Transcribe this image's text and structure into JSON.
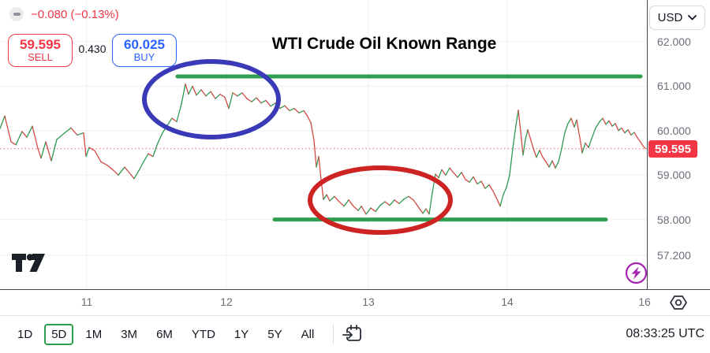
{
  "header": {
    "change_text": "−0.080 (−0.13%)",
    "sell": {
      "price": "59.595",
      "label": "SELL"
    },
    "spread": "0.430",
    "buy": {
      "price": "60.025",
      "label": "BUY"
    },
    "currency": "USD",
    "title": "WTI Crude Oil Known Range"
  },
  "price_axis": {
    "ticks": [
      {
        "label": "62.000",
        "price": 62.0
      },
      {
        "label": "61.000",
        "price": 61.0
      },
      {
        "label": "60.000",
        "price": 60.0
      },
      {
        "label": "59.000",
        "price": 59.0
      },
      {
        "label": "58.000",
        "price": 58.0
      },
      {
        "label": "57.200",
        "price": 57.2
      }
    ],
    "last_price_badge": {
      "label": "59.595",
      "price": 59.595,
      "color": "#f23645"
    }
  },
  "time_axis": {
    "ticks": [
      {
        "label": "11",
        "x": 110
      },
      {
        "label": "12",
        "x": 287
      },
      {
        "label": "13",
        "x": 467
      },
      {
        "label": "14",
        "x": 643
      },
      {
        "label": "16",
        "x": 817
      }
    ]
  },
  "toolbar": {
    "ranges": [
      "1D",
      "5D",
      "1M",
      "3M",
      "6M",
      "YTD",
      "1Y",
      "5Y",
      "All"
    ],
    "active_range": "5D",
    "clock": "08:33:25 UTC"
  },
  "icons": {
    "currency_chevron": "chevron-down",
    "settings": "gear",
    "goto_date": "calendar-arrow",
    "execution": "lightning-bolt",
    "watermark": "tradingview-logo"
  },
  "chart_data": {
    "type": "line",
    "title": "WTI Crude Oil Known Range",
    "ylabel": "USD",
    "ylim": [
      57.0,
      62.3
    ],
    "x_unit": "px",
    "grid": true,
    "last_price": 59.595,
    "up_color": "#2c9a52",
    "down_color": "#d24a43",
    "grid_color": "#edf0f4",
    "points": [
      [
        0,
        60.05
      ],
      [
        6,
        60.33
      ],
      [
        14,
        59.75
      ],
      [
        20,
        59.68
      ],
      [
        28,
        59.98
      ],
      [
        34,
        59.85
      ],
      [
        41,
        60.1
      ],
      [
        48,
        59.6
      ],
      [
        52,
        59.38
      ],
      [
        58,
        59.75
      ],
      [
        65,
        59.32
      ],
      [
        72,
        59.8
      ],
      [
        82,
        59.95
      ],
      [
        90,
        60.06
      ],
      [
        98,
        59.9
      ],
      [
        106,
        59.95
      ],
      [
        109,
        59.42
      ],
      [
        113,
        59.62
      ],
      [
        120,
        59.55
      ],
      [
        128,
        59.3
      ],
      [
        136,
        59.22
      ],
      [
        143,
        59.12
      ],
      [
        150,
        59.0
      ],
      [
        158,
        59.18
      ],
      [
        164,
        59.05
      ],
      [
        170,
        58.92
      ],
      [
        176,
        59.1
      ],
      [
        182,
        59.3
      ],
      [
        188,
        59.48
      ],
      [
        194,
        59.42
      ],
      [
        200,
        59.72
      ],
      [
        206,
        59.95
      ],
      [
        212,
        60.12
      ],
      [
        218,
        60.28
      ],
      [
        224,
        60.2
      ],
      [
        230,
        60.6
      ],
      [
        235,
        61.05
      ],
      [
        239,
        60.82
      ],
      [
        244,
        61.0
      ],
      [
        249,
        60.8
      ],
      [
        255,
        60.92
      ],
      [
        261,
        60.78
      ],
      [
        267,
        60.88
      ],
      [
        273,
        60.72
      ],
      [
        279,
        60.82
      ],
      [
        285,
        60.75
      ],
      [
        290,
        60.5
      ],
      [
        295,
        60.85
      ],
      [
        301,
        60.78
      ],
      [
        307,
        60.85
      ],
      [
        313,
        60.72
      ],
      [
        319,
        60.65
      ],
      [
        325,
        60.74
      ],
      [
        331,
        60.62
      ],
      [
        337,
        60.68
      ],
      [
        343,
        60.55
      ],
      [
        349,
        60.62
      ],
      [
        355,
        60.5
      ],
      [
        361,
        60.56
      ],
      [
        367,
        60.45
      ],
      [
        373,
        60.5
      ],
      [
        379,
        60.4
      ],
      [
        385,
        60.45
      ],
      [
        390,
        60.32
      ],
      [
        394,
        60.18
      ],
      [
        398,
        59.78
      ],
      [
        401,
        59.18
      ],
      [
        404,
        59.42
      ],
      [
        407,
        58.9
      ],
      [
        410,
        58.45
      ],
      [
        414,
        58.56
      ],
      [
        418,
        58.42
      ],
      [
        424,
        58.52
      ],
      [
        430,
        58.4
      ],
      [
        436,
        58.3
      ],
      [
        442,
        58.44
      ],
      [
        448,
        58.3
      ],
      [
        454,
        58.2
      ],
      [
        458,
        58.3
      ],
      [
        464,
        58.12
      ],
      [
        470,
        58.26
      ],
      [
        476,
        58.18
      ],
      [
        482,
        58.32
      ],
      [
        488,
        58.4
      ],
      [
        494,
        58.32
      ],
      [
        500,
        58.44
      ],
      [
        506,
        58.36
      ],
      [
        512,
        58.46
      ],
      [
        518,
        58.52
      ],
      [
        524,
        58.44
      ],
      [
        528,
        58.34
      ],
      [
        532,
        58.24
      ],
      [
        536,
        58.14
      ],
      [
        540,
        58.24
      ],
      [
        544,
        58.12
      ],
      [
        548,
        58.6
      ],
      [
        552,
        59.02
      ],
      [
        556,
        58.94
      ],
      [
        560,
        59.12
      ],
      [
        565,
        59.0
      ],
      [
        570,
        59.16
      ],
      [
        575,
        59.05
      ],
      [
        580,
        58.95
      ],
      [
        585,
        59.06
      ],
      [
        590,
        58.9
      ],
      [
        595,
        58.84
      ],
      [
        600,
        58.96
      ],
      [
        605,
        58.8
      ],
      [
        610,
        58.86
      ],
      [
        615,
        58.7
      ],
      [
        620,
        58.78
      ],
      [
        625,
        58.64
      ],
      [
        630,
        58.46
      ],
      [
        634,
        58.3
      ],
      [
        638,
        58.56
      ],
      [
        642,
        58.72
      ],
      [
        646,
        59.0
      ],
      [
        650,
        59.6
      ],
      [
        654,
        60.12
      ],
      [
        657,
        60.46
      ],
      [
        660,
        59.98
      ],
      [
        663,
        59.45
      ],
      [
        666,
        59.8
      ],
      [
        669,
        60.02
      ],
      [
        672,
        59.84
      ],
      [
        676,
        59.6
      ],
      [
        680,
        59.4
      ],
      [
        684,
        59.56
      ],
      [
        688,
        59.4
      ],
      [
        692,
        59.3
      ],
      [
        696,
        59.18
      ],
      [
        700,
        59.32
      ],
      [
        704,
        59.16
      ],
      [
        708,
        59.3
      ],
      [
        712,
        59.6
      ],
      [
        716,
        59.96
      ],
      [
        720,
        60.16
      ],
      [
        724,
        60.28
      ],
      [
        728,
        60.08
      ],
      [
        731,
        60.24
      ],
      [
        735,
        59.84
      ],
      [
        738,
        59.5
      ],
      [
        742,
        59.72
      ],
      [
        746,
        59.62
      ],
      [
        750,
        59.82
      ],
      [
        755,
        60.06
      ],
      [
        760,
        60.2
      ],
      [
        764,
        60.28
      ],
      [
        768,
        60.14
      ],
      [
        772,
        60.22
      ],
      [
        776,
        60.1
      ],
      [
        780,
        60.16
      ],
      [
        784,
        60.0
      ],
      [
        788,
        60.06
      ],
      [
        792,
        59.95
      ],
      [
        796,
        60.02
      ],
      [
        800,
        59.9
      ],
      [
        804,
        59.96
      ],
      [
        808,
        59.84
      ],
      [
        812,
        59.74
      ],
      [
        815,
        59.66
      ],
      [
        818,
        59.595
      ]
    ],
    "annotations": {
      "resistance_line": {
        "price": 61.22,
        "x1": 225,
        "x2": 812,
        "color": "#2e9e4f",
        "width": 5
      },
      "support_line": {
        "price": 58.0,
        "x1": 348,
        "x2": 768,
        "color": "#2e9e4f",
        "width": 5
      },
      "last_price_line": {
        "price": 59.595,
        "color": "#f23645",
        "style": "dotted"
      },
      "ellipses": [
        {
          "name": "range-high-ellipse",
          "cx": 268,
          "cy": 126,
          "rx": 85,
          "ry": 48,
          "color": "#3a3ab8",
          "width": 6
        },
        {
          "name": "range-low-ellipse",
          "cx": 482,
          "cy": 254,
          "rx": 89,
          "ry": 41,
          "color": "#cd2323",
          "width": 6
        }
      ]
    }
  }
}
